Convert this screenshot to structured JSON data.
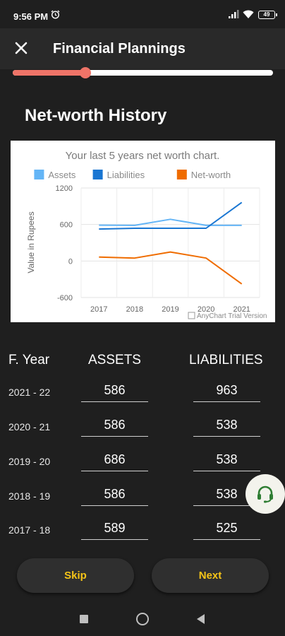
{
  "status_bar": {
    "time": "9:56 PM",
    "battery": "49"
  },
  "app_bar": {
    "title": "Financial Plannings"
  },
  "progress": {
    "fraction": 0.28
  },
  "section_title": "Net-worth History",
  "chart_data": {
    "type": "line",
    "title": "Your last 5 years net worth chart.",
    "ylabel": "Value in Rupees",
    "xlabel": "",
    "categories": [
      "2017",
      "2018",
      "2019",
      "2020",
      "2021"
    ],
    "yticks": [
      "1200",
      "600",
      "0",
      "-600"
    ],
    "ylim": [
      -600,
      1200
    ],
    "grid": true,
    "legend": "top",
    "series": [
      {
        "name": "Assets",
        "color": "#64b5f6",
        "values": [
          589,
          586,
          686,
          586,
          586
        ]
      },
      {
        "name": "Liabilities",
        "color": "#1976d2",
        "values": [
          525,
          538,
          538,
          538,
          963
        ]
      },
      {
        "name": "Net-worth",
        "color": "#ef6c00",
        "values": [
          64,
          48,
          148,
          48,
          -377
        ]
      }
    ],
    "watermark": "AnyChart Trial Version"
  },
  "table": {
    "headers": {
      "year": "F. Year",
      "assets": "ASSETS",
      "liabilities": "LIABILITIES"
    },
    "rows": [
      {
        "year": "2021 - 22",
        "assets": "586",
        "liabilities": "963"
      },
      {
        "year": "2020 - 21",
        "assets": "586",
        "liabilities": "538"
      },
      {
        "year": "2019 - 20",
        "assets": "686",
        "liabilities": "538"
      },
      {
        "year": "2018 - 19",
        "assets": "586",
        "liabilities": "538"
      },
      {
        "year": "2017 - 18",
        "assets": "589",
        "liabilities": "525"
      }
    ]
  },
  "buttons": {
    "skip": "Skip",
    "next": "Next"
  },
  "colors": {
    "accent": "#ee7468",
    "button_text": "#f5c418",
    "background": "#1f1f1f"
  },
  "icons": {
    "close": "close-icon",
    "support": "headset-icon",
    "nav_recent": "square-icon",
    "nav_home": "circle-icon",
    "nav_back": "triangle-back-icon"
  }
}
